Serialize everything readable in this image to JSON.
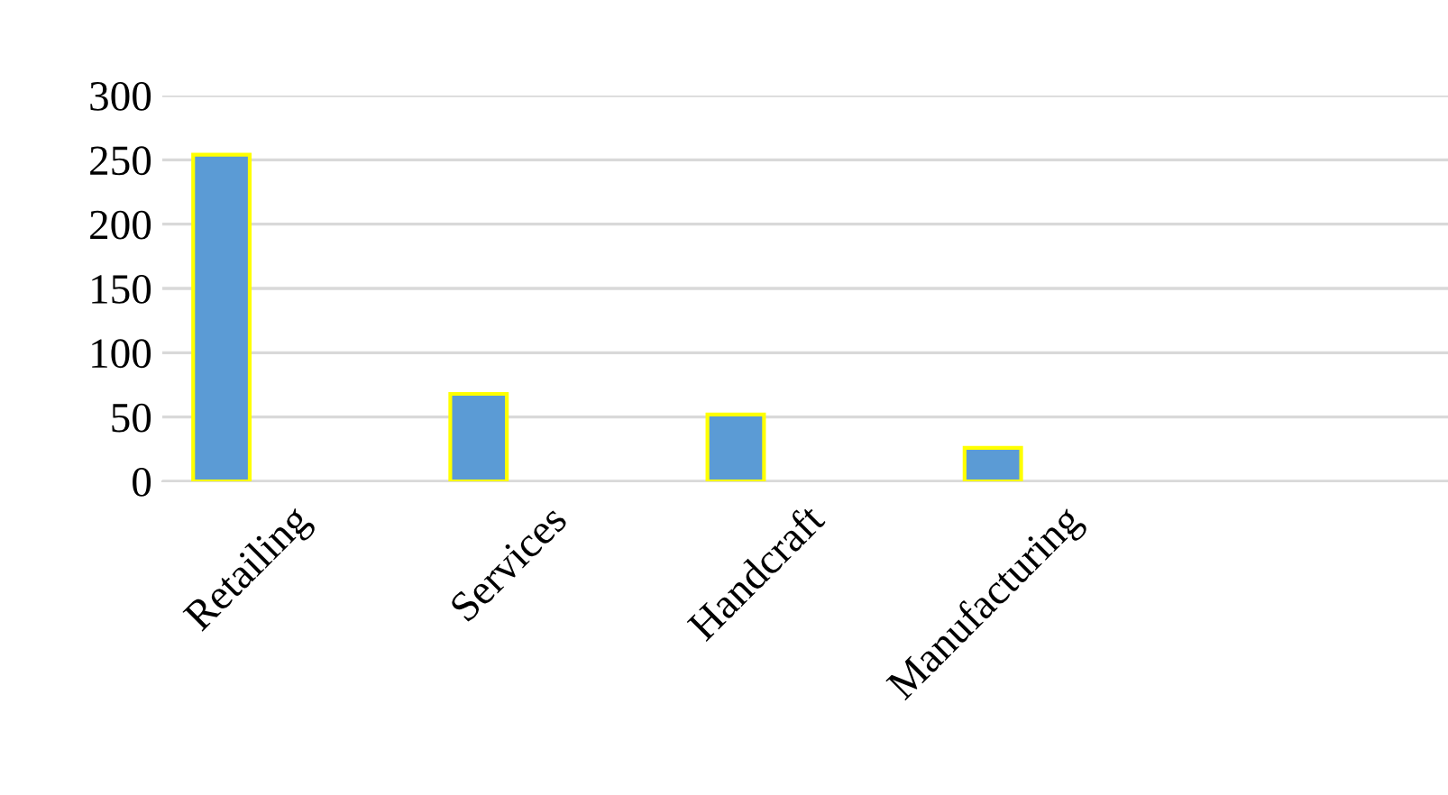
{
  "chart_data": {
    "type": "bar",
    "categories": [
      "Retailing",
      "Services",
      "Handcraft",
      "Manufacturing",
      null
    ],
    "series": [
      {
        "color": "#5b9bd5",
        "values": [
          254,
          68,
          52,
          26,
          null
        ]
      }
    ],
    "ylim": [
      0,
      300
    ],
    "yticks": [
      0,
      50,
      100,
      150,
      200,
      250,
      300
    ],
    "grid": "y",
    "legend": false
  }
}
